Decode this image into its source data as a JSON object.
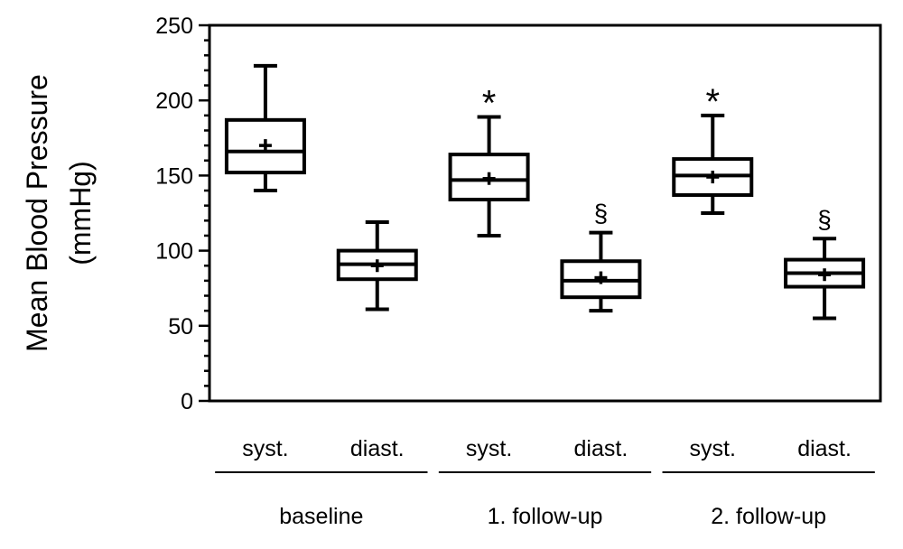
{
  "chart_data": {
    "type": "box",
    "ylabel_lines": [
      "Mean Blood Pressure",
      "(mmHg)"
    ],
    "ylim": [
      0,
      250
    ],
    "yticks": [
      0,
      50,
      100,
      150,
      200,
      250
    ],
    "y_minor_step": 10,
    "grid": false,
    "groups": [
      {
        "label": "baseline",
        "categories": [
          0,
          1
        ]
      },
      {
        "label": "1. follow-up",
        "categories": [
          2,
          3
        ]
      },
      {
        "label": "2. follow-up",
        "categories": [
          4,
          5
        ]
      }
    ],
    "boxes": [
      {
        "label": "syst.",
        "min": 140,
        "q1": 152,
        "median": 166,
        "q3": 187,
        "max": 223,
        "mean": 170,
        "annotation": ""
      },
      {
        "label": "diast.",
        "min": 61,
        "q1": 81,
        "median": 91,
        "q3": 100,
        "max": 119,
        "mean": 90,
        "annotation": ""
      },
      {
        "label": "syst.",
        "min": 110,
        "q1": 134,
        "median": 147,
        "q3": 164,
        "max": 189,
        "mean": 148,
        "annotation": "*"
      },
      {
        "label": "diast.",
        "min": 60,
        "q1": 69,
        "median": 80,
        "q3": 93,
        "max": 112,
        "mean": 82,
        "annotation": "§"
      },
      {
        "label": "syst.",
        "min": 125,
        "q1": 137,
        "median": 150,
        "q3": 161,
        "max": 190,
        "mean": 149,
        "annotation": "*"
      },
      {
        "label": "diast.",
        "min": 55,
        "q1": 76,
        "median": 85,
        "q3": 94,
        "max": 108,
        "mean": 84,
        "annotation": "§"
      }
    ]
  }
}
